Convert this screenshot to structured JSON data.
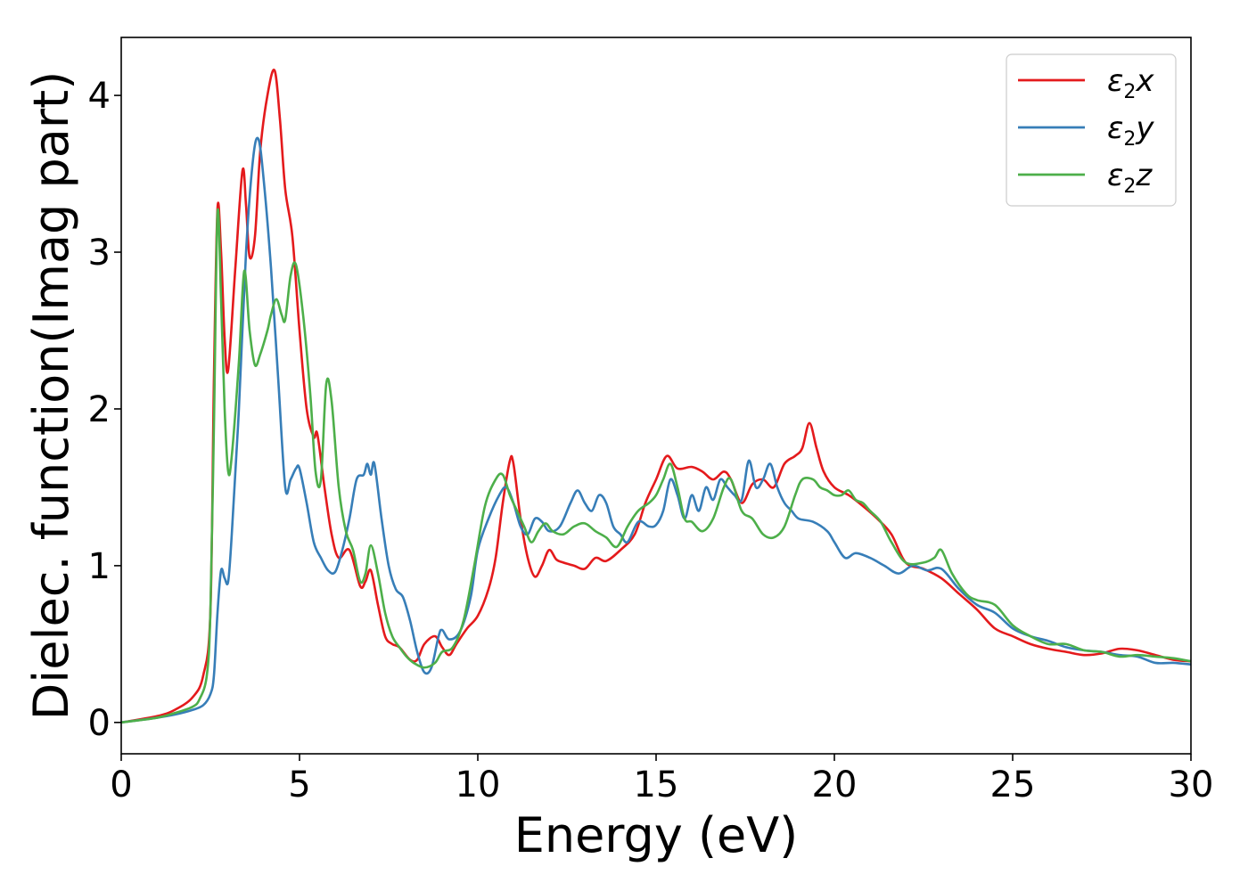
{
  "chart_data": {
    "type": "line",
    "title": "",
    "xlabel": "Energy (eV)",
    "ylabel": "Dielec. function(Imag part)",
    "xlim": [
      0,
      30
    ],
    "ylim": [
      -0.2,
      4.37
    ],
    "xticks": [
      0,
      5,
      10,
      15,
      20,
      25,
      30
    ],
    "yticks": [
      0,
      1,
      2,
      3,
      4
    ],
    "grid": false,
    "legend_position": "top-right",
    "series": [
      {
        "name": "ε₂x",
        "legend_main": "ε",
        "legend_sub": "2",
        "legend_suffix": "x",
        "color": "#e41a1c",
        "x": [
          0,
          1,
          1.5,
          2,
          2.3,
          2.5,
          2.6,
          2.7,
          2.8,
          2.9,
          3.0,
          3.2,
          3.4,
          3.5,
          3.6,
          3.75,
          3.9,
          4.1,
          4.3,
          4.45,
          4.6,
          4.8,
          5.0,
          5.2,
          5.4,
          5.5,
          5.7,
          5.9,
          6.1,
          6.4,
          6.7,
          6.85,
          7.0,
          7.2,
          7.4,
          7.6,
          7.8,
          8.1,
          8.3,
          8.5,
          8.8,
          9.0,
          9.2,
          9.4,
          9.7,
          10.0,
          10.3,
          10.5,
          10.7,
          10.9,
          11.0,
          11.2,
          11.4,
          11.6,
          11.8,
          12.0,
          12.2,
          12.4,
          12.7,
          13.0,
          13.3,
          13.6,
          14.0,
          14.4,
          14.7,
          15.0,
          15.3,
          15.6,
          16.0,
          16.3,
          16.6,
          16.9,
          17.1,
          17.4,
          17.7,
          18.0,
          18.3,
          18.6,
          18.9,
          19.1,
          19.3,
          19.5,
          19.7,
          20.0,
          20.4,
          20.8,
          21.2,
          21.6,
          22.0,
          22.5,
          23.0,
          23.5,
          24.0,
          24.5,
          25.0,
          25.5,
          26.0,
          26.5,
          27.0,
          27.5,
          28.0,
          28.5,
          29.0,
          29.5,
          30.0
        ],
        "y": [
          0,
          0.04,
          0.08,
          0.16,
          0.3,
          0.7,
          2.2,
          3.28,
          3.0,
          2.45,
          2.25,
          2.9,
          3.52,
          3.3,
          2.97,
          3.1,
          3.65,
          4.0,
          4.16,
          3.85,
          3.4,
          3.1,
          2.5,
          2.0,
          1.82,
          1.84,
          1.5,
          1.2,
          1.05,
          1.1,
          0.87,
          0.9,
          0.97,
          0.75,
          0.55,
          0.5,
          0.48,
          0.4,
          0.4,
          0.5,
          0.55,
          0.48,
          0.43,
          0.5,
          0.6,
          0.68,
          0.85,
          1.05,
          1.4,
          1.67,
          1.65,
          1.3,
          1.05,
          0.93,
          1.0,
          1.1,
          1.04,
          1.02,
          1.0,
          0.98,
          1.05,
          1.03,
          1.1,
          1.2,
          1.4,
          1.55,
          1.7,
          1.62,
          1.63,
          1.6,
          1.55,
          1.6,
          1.55,
          1.4,
          1.52,
          1.55,
          1.5,
          1.65,
          1.7,
          1.75,
          1.91,
          1.75,
          1.6,
          1.5,
          1.45,
          1.38,
          1.3,
          1.2,
          1.02,
          0.98,
          0.92,
          0.82,
          0.72,
          0.6,
          0.55,
          0.5,
          0.47,
          0.45,
          0.43,
          0.44,
          0.47,
          0.46,
          0.43,
          0.4,
          0.39
        ]
      },
      {
        "name": "ε₂y",
        "legend_main": "ε",
        "legend_sub": "2",
        "legend_suffix": "y",
        "color": "#377eb8",
        "x": [
          0,
          1,
          1.5,
          2,
          2.3,
          2.5,
          2.6,
          2.7,
          2.8,
          2.9,
          3.0,
          3.1,
          3.3,
          3.5,
          3.7,
          3.85,
          4.0,
          4.2,
          4.4,
          4.6,
          4.75,
          4.9,
          5.0,
          5.2,
          5.4,
          5.6,
          5.8,
          6.0,
          6.2,
          6.4,
          6.6,
          6.8,
          6.9,
          7.0,
          7.1,
          7.3,
          7.5,
          7.7,
          7.9,
          8.1,
          8.3,
          8.5,
          8.7,
          8.9,
          9.0,
          9.2,
          9.5,
          9.8,
          10.0,
          10.3,
          10.6,
          10.8,
          11.0,
          11.2,
          11.4,
          11.6,
          11.8,
          12.0,
          12.3,
          12.6,
          12.8,
          13.0,
          13.2,
          13.4,
          13.6,
          13.8,
          14.0,
          14.2,
          14.5,
          14.8,
          15.0,
          15.2,
          15.4,
          15.6,
          15.8,
          16.0,
          16.2,
          16.4,
          16.6,
          16.8,
          17.0,
          17.2,
          17.4,
          17.6,
          17.8,
          18.0,
          18.2,
          18.4,
          18.6,
          18.8,
          19.0,
          19.4,
          19.8,
          20.0,
          20.3,
          20.6,
          21.0,
          21.4,
          21.8,
          22.2,
          22.6,
          23.0,
          23.5,
          24.0,
          24.5,
          25.0,
          25.5,
          26.0,
          26.5,
          27.0,
          27.5,
          28.0,
          28.5,
          29.0,
          29.5,
          30.0
        ],
        "y": [
          0,
          0.03,
          0.05,
          0.08,
          0.11,
          0.18,
          0.3,
          0.7,
          0.97,
          0.92,
          0.9,
          1.2,
          2.0,
          3.0,
          3.6,
          3.72,
          3.45,
          2.9,
          2.2,
          1.5,
          1.55,
          1.62,
          1.62,
          1.4,
          1.15,
          1.05,
          0.97,
          0.96,
          1.1,
          1.3,
          1.55,
          1.58,
          1.65,
          1.58,
          1.65,
          1.3,
          1.0,
          0.85,
          0.8,
          0.65,
          0.45,
          0.32,
          0.35,
          0.55,
          0.59,
          0.53,
          0.58,
          0.8,
          1.1,
          1.3,
          1.45,
          1.5,
          1.4,
          1.25,
          1.2,
          1.3,
          1.28,
          1.22,
          1.25,
          1.4,
          1.48,
          1.4,
          1.35,
          1.45,
          1.4,
          1.25,
          1.2,
          1.15,
          1.28,
          1.25,
          1.26,
          1.35,
          1.55,
          1.45,
          1.3,
          1.45,
          1.35,
          1.5,
          1.42,
          1.55,
          1.5,
          1.45,
          1.42,
          1.67,
          1.5,
          1.55,
          1.65,
          1.5,
          1.4,
          1.35,
          1.3,
          1.28,
          1.22,
          1.15,
          1.05,
          1.08,
          1.05,
          1.0,
          0.95,
          1.0,
          0.97,
          0.98,
          0.85,
          0.75,
          0.7,
          0.6,
          0.55,
          0.52,
          0.48,
          0.46,
          0.45,
          0.43,
          0.42,
          0.38,
          0.38,
          0.37
        ]
      },
      {
        "name": "ε₂z",
        "legend_main": "ε",
        "legend_sub": "2",
        "legend_suffix": "z",
        "color": "#4daf4a",
        "x": [
          0,
          1,
          1.5,
          2,
          2.2,
          2.4,
          2.5,
          2.6,
          2.7,
          2.8,
          2.9,
          3.0,
          3.1,
          3.3,
          3.45,
          3.6,
          3.75,
          3.9,
          4.1,
          4.2,
          4.35,
          4.5,
          4.6,
          4.75,
          4.9,
          5.1,
          5.3,
          5.45,
          5.6,
          5.75,
          5.9,
          6.1,
          6.3,
          6.5,
          6.7,
          6.85,
          7.0,
          7.2,
          7.4,
          7.6,
          7.8,
          8.0,
          8.2,
          8.5,
          8.8,
          9.0,
          9.3,
          9.6,
          9.9,
          10.2,
          10.5,
          10.7,
          10.9,
          11.1,
          11.3,
          11.5,
          11.7,
          11.9,
          12.1,
          12.4,
          12.7,
          13.0,
          13.3,
          13.6,
          13.9,
          14.2,
          14.5,
          14.8,
          15.0,
          15.2,
          15.4,
          15.6,
          15.8,
          16.0,
          16.3,
          16.6,
          16.9,
          17.1,
          17.4,
          17.7,
          18.0,
          18.3,
          18.6,
          18.9,
          19.1,
          19.4,
          19.6,
          19.8,
          20.0,
          20.2,
          20.4,
          20.6,
          20.8,
          21.0,
          21.3,
          21.6,
          22.0,
          22.5,
          22.8,
          23.0,
          23.3,
          23.7,
          24.0,
          24.5,
          25.0,
          25.5,
          26.0,
          26.5,
          27.0,
          27.5,
          28.0,
          28.5,
          29.0,
          29.5,
          30.0
        ],
        "y": [
          0,
          0.03,
          0.06,
          0.1,
          0.15,
          0.3,
          0.7,
          1.9,
          3.25,
          2.7,
          2.0,
          1.6,
          1.7,
          2.3,
          2.88,
          2.5,
          2.28,
          2.35,
          2.5,
          2.6,
          2.7,
          2.6,
          2.57,
          2.85,
          2.92,
          2.6,
          2.1,
          1.6,
          1.55,
          2.16,
          2.05,
          1.5,
          1.22,
          1.1,
          0.9,
          0.95,
          1.13,
          0.95,
          0.7,
          0.55,
          0.48,
          0.42,
          0.38,
          0.35,
          0.38,
          0.45,
          0.48,
          0.65,
          1.0,
          1.38,
          1.55,
          1.58,
          1.45,
          1.35,
          1.25,
          1.15,
          1.22,
          1.27,
          1.22,
          1.2,
          1.25,
          1.27,
          1.22,
          1.18,
          1.12,
          1.25,
          1.35,
          1.4,
          1.45,
          1.55,
          1.65,
          1.5,
          1.3,
          1.28,
          1.22,
          1.3,
          1.5,
          1.55,
          1.35,
          1.3,
          1.2,
          1.18,
          1.25,
          1.45,
          1.55,
          1.55,
          1.5,
          1.48,
          1.45,
          1.45,
          1.48,
          1.42,
          1.4,
          1.35,
          1.28,
          1.15,
          1.02,
          1.02,
          1.05,
          1.1,
          0.95,
          0.82,
          0.78,
          0.75,
          0.62,
          0.55,
          0.5,
          0.5,
          0.46,
          0.45,
          0.42,
          0.43,
          0.42,
          0.41,
          0.39
        ]
      }
    ]
  }
}
